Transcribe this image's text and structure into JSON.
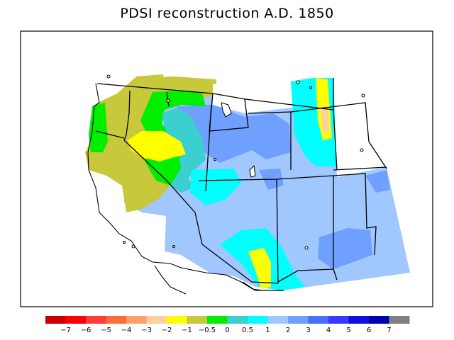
{
  "title": "PDSI reconstruction A.D. 1850",
  "colors": {
    "frame": "#000000",
    "background": "#ffffff",
    "boundary": "#000000"
  },
  "map": {
    "region": "Western United States",
    "variable": "PDSI",
    "year": "A.D. 1850"
  },
  "legend": {
    "boxes": [
      {
        "color": "#cc0000"
      },
      {
        "color": "#ff0000"
      },
      {
        "color": "#ff3b3b"
      },
      {
        "color": "#ff6b3b"
      },
      {
        "color": "#ff9f6b"
      },
      {
        "color": "#ffcf9f"
      },
      {
        "color": "#ffff00"
      },
      {
        "color": "#c8c83c"
      },
      {
        "color": "#00ee00"
      },
      {
        "color": "#3ccfcf"
      },
      {
        "color": "#00ffff"
      },
      {
        "color": "#a0c8ff"
      },
      {
        "color": "#6f9fff"
      },
      {
        "color": "#4a6fff"
      },
      {
        "color": "#3a3aff"
      },
      {
        "color": "#1010e0"
      },
      {
        "color": "#0000b0"
      },
      {
        "color": "#808080"
      }
    ],
    "labels": [
      "−7",
      "−6",
      "−5",
      "−4",
      "−3",
      "−2",
      "−1",
      "−0.5",
      "0",
      "0.5",
      "1",
      "2",
      "3",
      "4",
      "5",
      "6",
      "7"
    ]
  }
}
